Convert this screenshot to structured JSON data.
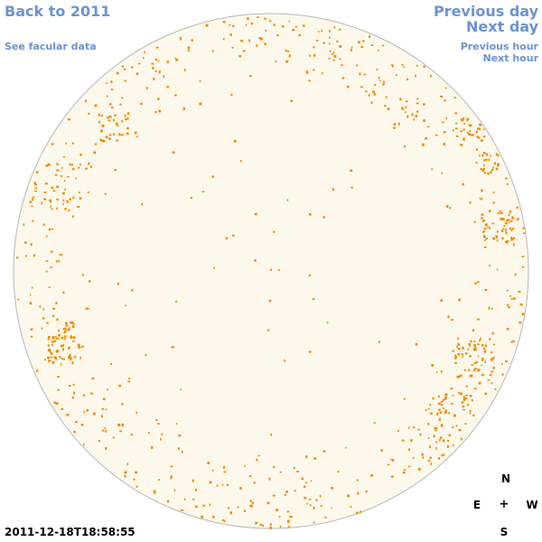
{
  "nav": {
    "back": "Back to 2011",
    "facular": "See facular data",
    "previous_day": "Previous day",
    "next_day": "Next day",
    "previous_hour": "Previous hour",
    "next_hour": "Next hour"
  },
  "compass": {
    "north": "N",
    "east": "E",
    "center": "+",
    "west": "W",
    "south": "S"
  },
  "timestamp": "2011-12-18T18:58:55",
  "colors": {
    "disk_fill": "#fdf8ec",
    "disk_outline": "#b8b8b8",
    "facula_spot": "#f08c00",
    "link": "#6b93d6"
  }
}
